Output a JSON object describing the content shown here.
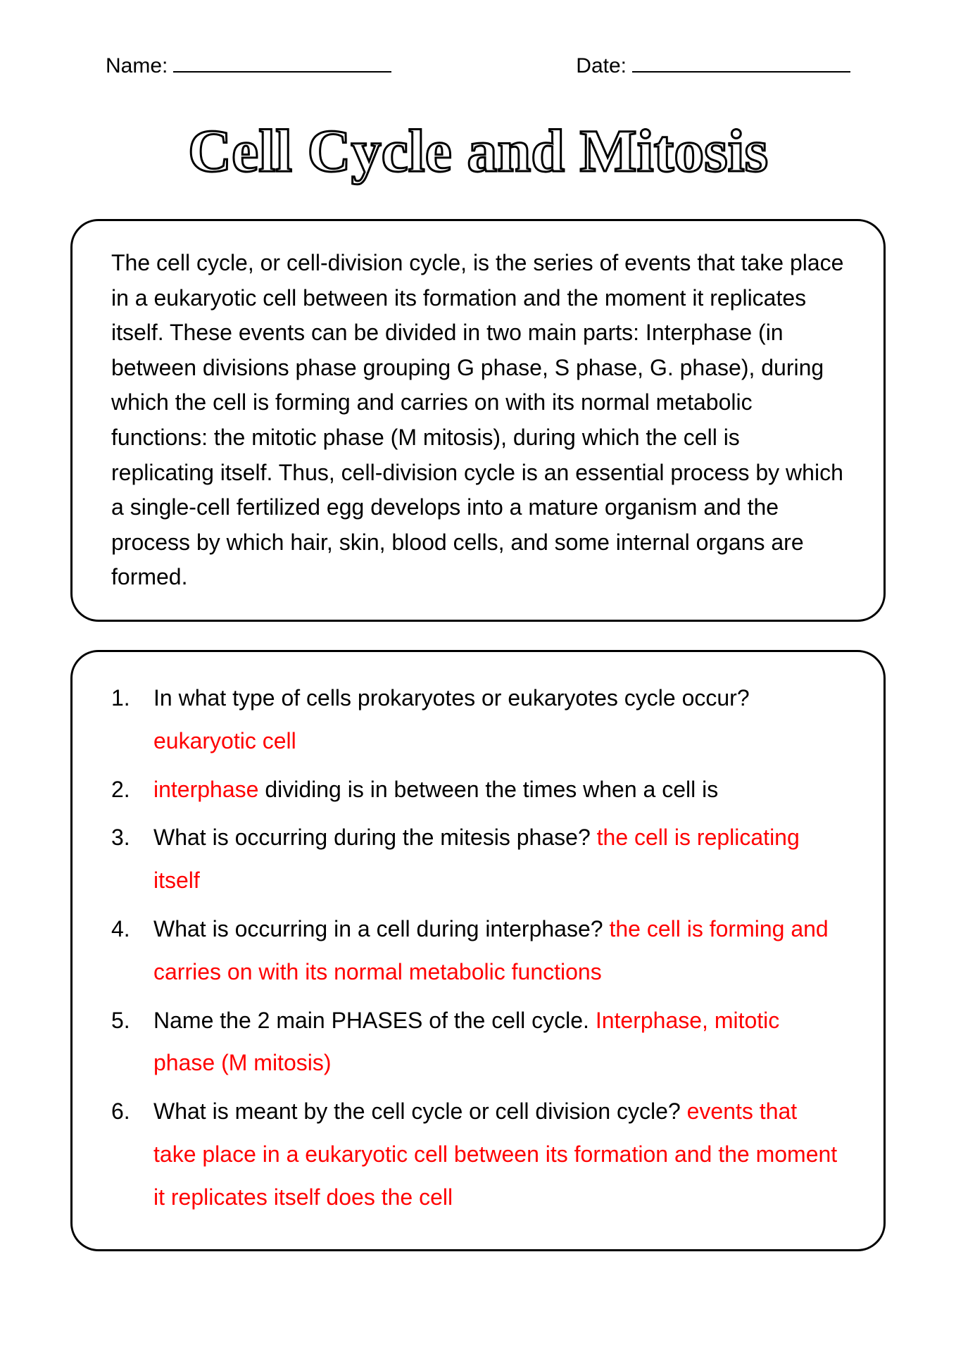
{
  "header": {
    "name_label": "Name:",
    "date_label": "Date:"
  },
  "title": "Cell Cycle and Mitosis",
  "intro": "The cell cycle, or cell-division cycle, is the series of events that take place in a eukaryotic cell between its formation and the moment it replicates itself. These events can be divided in two main parts: Interphase (in between divisions phase grouping G phase, S phase, G. phase), during which the cell is forming and carries on with its normal metabolic functions: the mitotic phase (M mitosis), during which the cell is replicating itself. Thus, cell-division cycle is an essential process by which a single-cell fertilized egg develops into a mature organism and the process by which hair, skin, blood cells, and some internal organs are formed.",
  "questions": [
    {
      "q": "In what type of cells prokaryotes or eukaryotes cycle occur?",
      "a": "eukaryotic cell",
      "a_pos": "after"
    },
    {
      "a": "interphase",
      "q": " dividing is in between the times when a cell is",
      "a_pos": "before"
    },
    {
      "q": "What is occurring during the mitesis phase?",
      "a": "the cell is replicating itself",
      "a_pos": "after"
    },
    {
      "q": "What is occurring in a cell during interphase?",
      "a": "the cell is forming and carries on with its normal metabolic functions",
      "a_pos": "after"
    },
    {
      "q": "Name the 2 main PHASES of the cell cycle.",
      "a": "Interphase, mitotic phase (M mitosis)",
      "a_pos": "after"
    },
    {
      "q": "What is meant by the cell cycle or cell division cycle?",
      "a": "events that take place in a eukaryotic cell between its formation and the moment it replicates itself does the cell",
      "a_pos": "after"
    }
  ],
  "style": {
    "body_font_size": 32,
    "answer_color": "#ff0000",
    "text_color": "#000000",
    "border_color": "#000000",
    "border_radius": 40,
    "background": "#ffffff"
  }
}
